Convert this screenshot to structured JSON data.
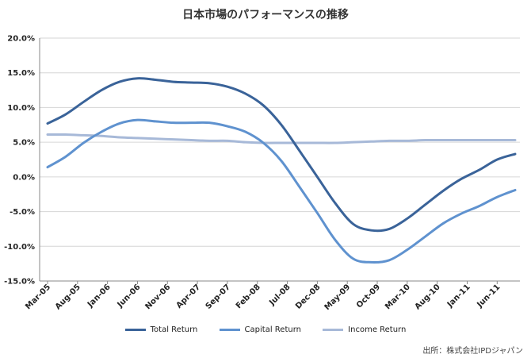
{
  "title": "日本市場のパフォーマンスの推移",
  "source": "出所：株式会社IPDジャパン",
  "colors": {
    "total_return": "#3a6399",
    "capital_return": "#5f92cf",
    "income_return": "#a7b9d8",
    "grid": "#d6d6d6",
    "axis": "#888888"
  },
  "chart_data": {
    "type": "line",
    "title": "日本市場のパフォーマンスの推移",
    "xlabel": "",
    "ylabel": "",
    "ylim": [
      -15,
      20
    ],
    "y_ticks": [
      20,
      15,
      10,
      5,
      0,
      -5,
      -10,
      -15
    ],
    "y_tick_labels": [
      "20.0%",
      "15.0%",
      "10.0%",
      "5.0%",
      "0.0%",
      "-5.0%",
      "-10.0%",
      "-15.0%"
    ],
    "x_ticks": [
      "Mar-05",
      "Aug-05",
      "Jan-06",
      "Jun-06",
      "Nov-06",
      "Apr-07",
      "Sep-07",
      "Feb-08",
      "Jul-08",
      "Dec-08",
      "May-09",
      "Oct-09",
      "Mar-10",
      "Aug-10",
      "Jan-11",
      "Jun-11"
    ],
    "x": [
      "Mar-05",
      "Jun-05",
      "Sep-05",
      "Dec-05",
      "Mar-06",
      "Jun-06",
      "Sep-06",
      "Dec-06",
      "Mar-07",
      "Jun-07",
      "Sep-07",
      "Dec-07",
      "Mar-08",
      "Jun-08",
      "Sep-08",
      "Dec-08",
      "Mar-09",
      "Jun-09",
      "Sep-09",
      "Dec-09",
      "Mar-10",
      "Jun-10",
      "Sep-10",
      "Dec-10",
      "Mar-11",
      "Jun-11",
      "Sep-11"
    ],
    "grid": true,
    "legend_position": "bottom",
    "series": [
      {
        "name": "Total Return",
        "values": [
          7.7,
          9.0,
          10.8,
          12.5,
          13.7,
          14.2,
          14.0,
          13.7,
          13.6,
          13.5,
          13.0,
          12.0,
          10.3,
          7.5,
          3.8,
          0.0,
          -3.8,
          -6.8,
          -7.7,
          -7.5,
          -6.0,
          -4.0,
          -2.0,
          -0.3,
          1.0,
          2.5,
          3.3
        ],
        "color": "#3a6399"
      },
      {
        "name": "Capital Return",
        "values": [
          1.4,
          2.9,
          4.9,
          6.5,
          7.7,
          8.2,
          8.0,
          7.8,
          7.8,
          7.8,
          7.3,
          6.5,
          4.9,
          2.3,
          -1.4,
          -5.2,
          -9.1,
          -11.8,
          -12.3,
          -12.0,
          -10.5,
          -8.6,
          -6.7,
          -5.3,
          -4.2,
          -2.9,
          -1.9
        ],
        "color": "#5f92cf"
      },
      {
        "name": "Income Return",
        "values": [
          6.1,
          6.1,
          6.0,
          5.9,
          5.7,
          5.6,
          5.5,
          5.4,
          5.3,
          5.2,
          5.2,
          5.0,
          4.9,
          4.9,
          4.9,
          4.9,
          4.9,
          5.0,
          5.1,
          5.2,
          5.2,
          5.3,
          5.3,
          5.3,
          5.3,
          5.3,
          5.3
        ],
        "color": "#a7b9d8"
      }
    ]
  }
}
